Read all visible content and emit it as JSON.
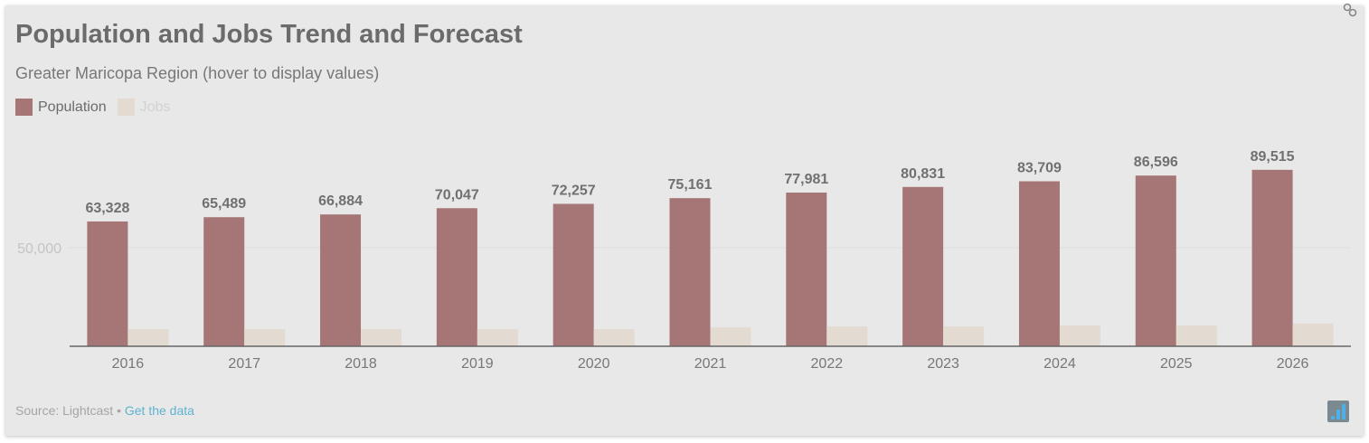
{
  "title": "Population and Jobs Trend and Forecast",
  "subtitle": "Greater Maricopa Region (hover to display values)",
  "footer": {
    "source": "Source: Lightcast",
    "separator": "•",
    "link": "Get the data"
  },
  "icons": {
    "top_right": "link-icon",
    "bottom_right": "bar-chart-logo-icon"
  },
  "chart_data": {
    "type": "bar",
    "title": "Population and Jobs Trend and Forecast",
    "subtitle": "Greater Maricopa Region (hover to display values)",
    "categories": [
      "2016",
      "2017",
      "2018",
      "2019",
      "2020",
      "2021",
      "2022",
      "2023",
      "2024",
      "2025",
      "2026"
    ],
    "series": [
      {
        "name": "Population",
        "color": "#a67575",
        "values": [
          63328,
          65489,
          66884,
          70047,
          72257,
          75161,
          77981,
          80831,
          83709,
          86596,
          89515
        ],
        "labels": [
          "63,328",
          "65,489",
          "66,884",
          "70,047",
          "72,257",
          "75,161",
          "77,981",
          "80,831",
          "83,709",
          "86,596",
          "89,515"
        ]
      },
      {
        "name": "Jobs",
        "color": "#e3dbd1",
        "values": [
          8700,
          8700,
          8700,
          8700,
          8700,
          9600,
          10100,
          10100,
          10500,
          10500,
          11500
        ]
      }
    ],
    "ylim": [
      0,
      95000
    ],
    "yticks": [
      {
        "value": 50000,
        "label": "50,000"
      }
    ],
    "grid": true,
    "legend": "top-left"
  }
}
